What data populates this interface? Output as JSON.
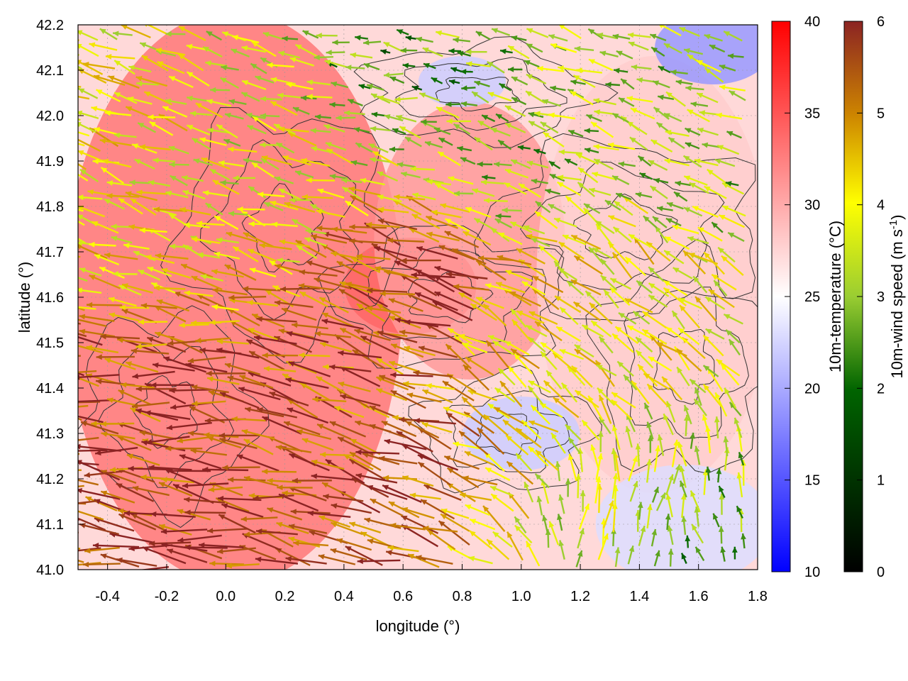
{
  "chart_data": {
    "type": "heatmap",
    "title": "",
    "xlabel": "longitude (°)",
    "ylabel": "latitude (°)",
    "xlim": [
      -0.5,
      1.8
    ],
    "ylim": [
      41.0,
      42.2
    ],
    "x_ticks": [
      "-0.4",
      "-0.2",
      "0.0",
      "0.2",
      "0.4",
      "0.6",
      "0.8",
      "1.0",
      "1.2",
      "1.4",
      "1.6",
      "1.8"
    ],
    "y_ticks": [
      "41.0",
      "41.1",
      "41.2",
      "41.3",
      "41.4",
      "41.5",
      "41.6",
      "41.7",
      "41.8",
      "41.9",
      "42.0",
      "42.1",
      "42.2"
    ],
    "grid": true,
    "layers": [
      "temperature field",
      "topography contours",
      "wind vectors"
    ],
    "temperature_colorbar": {
      "label": "10m-temperature (°C)",
      "range": [
        10,
        40
      ],
      "ticks": [
        "10",
        "15",
        "20",
        "25",
        "30",
        "35",
        "40"
      ],
      "colors": [
        "#0000ff",
        "#ffffff",
        "#ff0000"
      ]
    },
    "wind_colorbar": {
      "label_main": "10m-wind speed (m s",
      "label_sup": "-1",
      "label_end": ")",
      "range": [
        0,
        6
      ],
      "ticks": [
        "0",
        "1",
        "2",
        "3",
        "4",
        "5",
        "6"
      ],
      "colors": [
        "#000000",
        "#006400",
        "#9acd32",
        "#ffff00",
        "#cd8500",
        "#8b2323"
      ]
    },
    "temperature_regions": [
      {
        "lon": [
          -0.5,
          0.55
        ],
        "lat": [
          41.0,
          42.2
        ],
        "temp": 33
      },
      {
        "lon": [
          0.45,
          0.8
        ],
        "lat": [
          41.55,
          41.7
        ],
        "temp": 34
      },
      {
        "lon": [
          0.55,
          1.1
        ],
        "lat": [
          41.45,
          42.0
        ],
        "temp": 31
      },
      {
        "lon": [
          1.1,
          1.8
        ],
        "lat": [
          41.2,
          42.1
        ],
        "temp": 28
      },
      {
        "lon": [
          0.85,
          1.15
        ],
        "lat": [
          41.25,
          41.35
        ],
        "temp": 22
      },
      {
        "lon": [
          1.3,
          1.8
        ],
        "lat": [
          41.0,
          41.2
        ],
        "temp": 23
      },
      {
        "lon": [
          1.5,
          1.8
        ],
        "lat": [
          42.1,
          42.2
        ],
        "temp": 19
      },
      {
        "lon": [
          0.7,
          0.9
        ],
        "lat": [
          42.05,
          42.1
        ],
        "temp": 22
      }
    ],
    "wind_vectors": [
      {
        "lon": -0.4,
        "lat": 41.2,
        "u": -4.8,
        "v": 0.6,
        "speed": 5.8
      },
      {
        "lon": -0.2,
        "lat": 41.25,
        "u": -4.5,
        "v": 0.7,
        "speed": 5.5
      },
      {
        "lon": 0.0,
        "lat": 41.2,
        "u": -4.6,
        "v": 0.8,
        "speed": 5.6
      },
      {
        "lon": 0.2,
        "lat": 41.15,
        "u": -4.4,
        "v": 0.9,
        "speed": 5.5
      },
      {
        "lon": 0.4,
        "lat": 41.2,
        "u": -4.2,
        "v": 1.1,
        "speed": 5.4
      },
      {
        "lon": 0.6,
        "lat": 41.35,
        "u": -3.8,
        "v": 1.3,
        "speed": 5.2
      },
      {
        "lon": 0.7,
        "lat": 41.6,
        "u": -3.9,
        "v": 1.0,
        "speed": 5.6
      },
      {
        "lon": 1.0,
        "lat": 41.45,
        "u": -2.0,
        "v": 1.4,
        "speed": 3.8
      },
      {
        "lon": 1.4,
        "lat": 41.1,
        "u": 0.3,
        "v": 1.6,
        "speed": 3.0
      },
      {
        "lon": 1.6,
        "lat": 41.05,
        "u": -0.4,
        "v": 1.4,
        "speed": 2.2
      },
      {
        "lon": 1.4,
        "lat": 41.6,
        "u": -1.4,
        "v": 1.2,
        "speed": 3.5
      },
      {
        "lon": 1.0,
        "lat": 41.9,
        "u": -1.5,
        "v": 0.5,
        "speed": 2.4
      },
      {
        "lon": 0.2,
        "lat": 41.9,
        "u": -2.0,
        "v": 0.6,
        "speed": 3.2
      },
      {
        "lon": -0.3,
        "lat": 41.8,
        "u": -2.4,
        "v": 0.8,
        "speed": 3.6
      },
      {
        "lon": 0.6,
        "lat": 42.1,
        "u": -1.2,
        "v": 0.2,
        "speed": 2.0
      },
      {
        "lon": 1.6,
        "lat": 41.9,
        "u": -1.0,
        "v": 0.4,
        "speed": 2.5
      }
    ]
  }
}
